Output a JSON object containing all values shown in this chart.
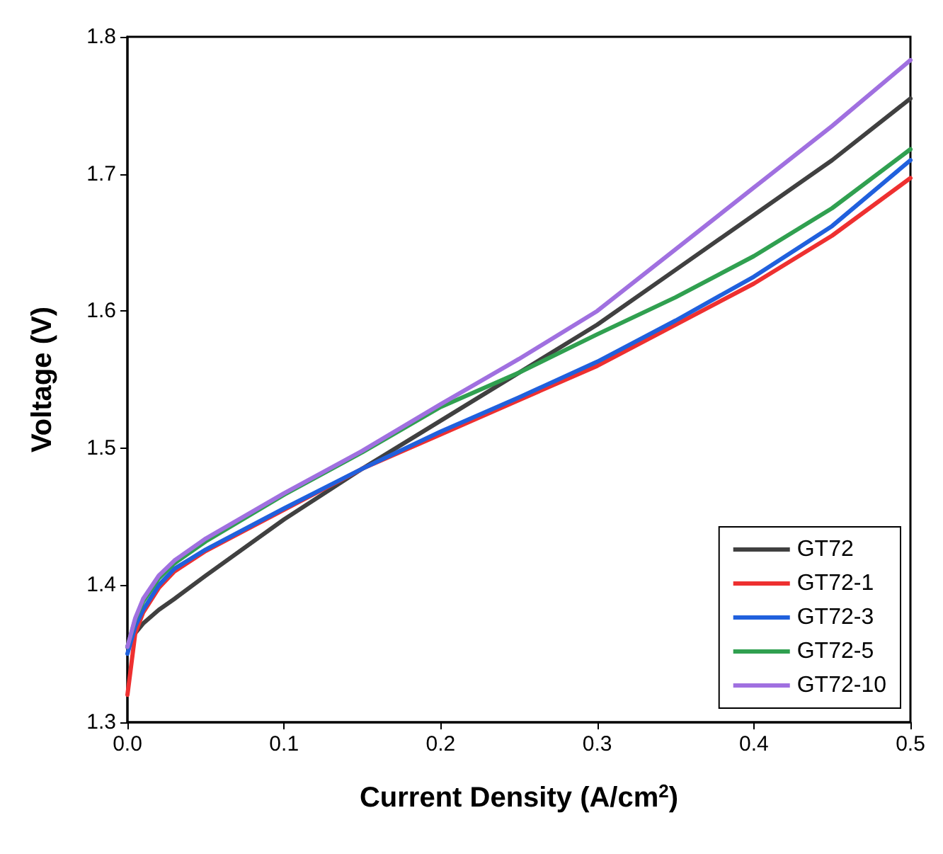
{
  "chart_data": {
    "type": "line",
    "xlabel": "Current Density (A/cm$^{2}$)",
    "ylabel": "Voltage (V)",
    "x": [
      0,
      0.005,
      0.01,
      0.02,
      0.03,
      0.05,
      0.1,
      0.15,
      0.2,
      0.25,
      0.3,
      0.35,
      0.4,
      0.45,
      0.5
    ],
    "series": [
      {
        "name": "GT72",
        "color": "#404040",
        "values": [
          1.355,
          1.365,
          1.372,
          1.382,
          1.39,
          1.407,
          1.448,
          1.485,
          1.52,
          1.555,
          1.59,
          1.63,
          1.67,
          1.71,
          1.755
        ]
      },
      {
        "name": "GT72-1",
        "color": "#ee3030",
        "values": [
          1.32,
          1.365,
          1.38,
          1.398,
          1.41,
          1.425,
          1.455,
          1.485,
          1.51,
          1.535,
          1.56,
          1.59,
          1.62,
          1.655,
          1.697
        ]
      },
      {
        "name": "GT72-3",
        "color": "#2060dd",
        "values": [
          1.35,
          1.37,
          1.382,
          1.4,
          1.412,
          1.426,
          1.456,
          1.485,
          1.512,
          1.537,
          1.563,
          1.593,
          1.625,
          1.662,
          1.71
        ]
      },
      {
        "name": "GT72-5",
        "color": "#30a050",
        "values": [
          1.355,
          1.375,
          1.388,
          1.405,
          1.416,
          1.432,
          1.466,
          1.497,
          1.53,
          1.555,
          1.583,
          1.61,
          1.64,
          1.675,
          1.718
        ]
      },
      {
        "name": "GT72-10",
        "color": "#a070e0",
        "values": [
          1.355,
          1.376,
          1.39,
          1.407,
          1.418,
          1.434,
          1.467,
          1.498,
          1.532,
          1.565,
          1.6,
          1.645,
          1.69,
          1.735,
          1.783
        ]
      }
    ],
    "xlim": [
      0,
      0.5
    ],
    "xticks": [
      {
        "value": 0,
        "label": "0.0"
      },
      0.1,
      0.2,
      0.3,
      0.4,
      0.5
    ],
    "ylim": [
      1.3,
      1.8
    ],
    "yticks": [
      1.3,
      1.4,
      1.5,
      1.6,
      1.7,
      1.8
    ],
    "grid": false,
    "legend": "bottom right",
    "marker": "none",
    "line_style": "solid"
  }
}
